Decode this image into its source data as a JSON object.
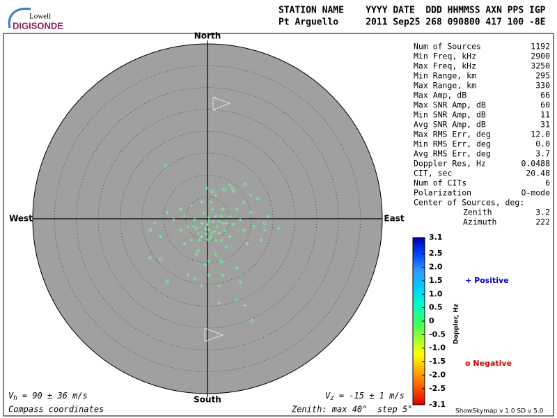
{
  "header": {
    "logo_top": "Lowell",
    "logo_bottom": "DIGISONDE",
    "line1": "STATION NAME    YYYY DATE  DDD HHMMSS AXN PPS IGP",
    "line2": "Pt Arguello     2011 Sep25 268 090800 417 100 -8E"
  },
  "stats": [
    {
      "label": "Num of Sources",
      "value": "1192"
    },
    {
      "label": "Min Freq, kHz",
      "value": "2900"
    },
    {
      "label": "Max Freq, kHz",
      "value": "3250"
    },
    {
      "label": "Min Range, km",
      "value": "295"
    },
    {
      "label": "Max Range, km",
      "value": "330"
    },
    {
      "label": "Max Amp, dB",
      "value": "66"
    },
    {
      "label": "Max SNR Amp, dB",
      "value": "60"
    },
    {
      "label": "Min SNR Amp, dB",
      "value": "11"
    },
    {
      "label": "Avg SNR Amp, dB",
      "value": "31"
    },
    {
      "label": "Max RMS Err, deg",
      "value": "12.0"
    },
    {
      "label": "Min RMS Err, deg",
      "value": "0.0"
    },
    {
      "label": "Avg RMS Err, deg",
      "value": "3.7"
    },
    {
      "label": "Doppler Res, Hz",
      "value": "0.0488"
    },
    {
      "label": "CIT, sec",
      "value": "20.48"
    },
    {
      "label": "Num of CITs",
      "value": "6"
    },
    {
      "label": "Polarization",
      "value": "O-mode"
    }
  ],
  "center": {
    "title": "Center of Sources, deg:",
    "rows": [
      {
        "label": "Zenith",
        "value": "3.2"
      },
      {
        "label": "Azimuth",
        "value": "222"
      }
    ]
  },
  "footer": {
    "vh": {
      "symbol": "V",
      "sub": "h",
      "text": " = 90 ± 36 m/s"
    },
    "vz": {
      "symbol": "V",
      "sub": "z",
      "text": " = -15 ± 1 m/s"
    },
    "coords": "Compass coordinates",
    "zenith": "Zenith: max 40°  step 5°",
    "version": "ShowSkymap v 1.0  SD v 5.0"
  },
  "chart_data": {
    "type": "polar-scatter",
    "directions": {
      "north": "North",
      "south": "South",
      "west": "West",
      "east": "East"
    },
    "rlim": [
      0,
      40
    ],
    "rticks": [
      5,
      10,
      15,
      20,
      25,
      30,
      35,
      40
    ],
    "background": "#a0a0a0",
    "point_color": "#66ff99",
    "series": [
      {
        "name": "Positive",
        "symbol": "+",
        "color": "#0000cc",
        "x": [
          -0.2,
          0.8,
          1.1,
          1.9,
          -1.3,
          0.3,
          2.7,
          3.5,
          -2.9,
          -4.5,
          6.7,
          8.3,
          9.9,
          11.5,
          8.3,
          10.7,
          13.1,
          16.3,
          -7.7,
          -6.1,
          -3.7,
          -2.1,
          -0.5,
          0.3,
          2.7,
          3.5,
          6.7,
          7.5,
          2.7,
          6.7,
          8.6,
          -5.3,
          -13.2,
          -12.1,
          -9.2,
          -6.1,
          -3.7,
          1.9,
          5.1,
          5.9,
          -10.8,
          -4.5,
          -2.9,
          -1.3,
          0.3,
          1.9,
          4.3,
          9.1,
          12.3,
          13.9,
          -1.3,
          1.3,
          2.2,
          0.0,
          0.8,
          3.2,
          -2.1,
          5.1,
          7.5,
          9.9,
          3.5,
          5.1,
          -0.8,
          1.6,
          0.3,
          -1.8,
          4.0,
          5.9,
          -3.2,
          -5.3,
          -0.5,
          1.1,
          2.7,
          -1.3,
          1.9,
          4.3,
          0.3,
          -2.5,
          3.2,
          -0.3
        ],
        "y": [
          7.0,
          3.8,
          2.2,
          0.6,
          -1.0,
          -2.5,
          -3.3,
          -1.0,
          -0.2,
          -1.8,
          2.2,
          3.8,
          5.4,
          4.6,
          -2.6,
          -1.8,
          -2.6,
          -2.2,
          -0.2,
          -2.6,
          -4.9,
          -7.3,
          -10.5,
          -12.9,
          -15.3,
          -12.9,
          -11.3,
          -14.5,
          -19.3,
          -18.5,
          -19.8,
          -5.7,
          -8.9,
          -1.0,
          1.4,
          2.2,
          3.0,
          5.4,
          7.8,
          6.2,
          -4.1,
          -12.9,
          -13.7,
          -15.3,
          -9.7,
          -8.1,
          -6.5,
          -5.7,
          -4.9,
          0.6,
          3.8,
          -0.6,
          -1.8,
          -1.3,
          -4.1,
          -4.9,
          -3.3,
          -4.1,
          -0.2,
          1.4,
          2.2,
          0.6,
          1.4,
          -2.9,
          0.3,
          -4.9,
          -2.6,
          -1.3,
          -1.8,
          0.6,
          -2.2,
          -3.3,
          -0.6,
          -4.1,
          -4.9,
          -1.0,
          -0.6,
          -2.2,
          0.6,
          -3.5
        ]
      },
      {
        "name": "Negative",
        "symbol": "o",
        "color": "#cc0000",
        "x": [
          -9.6,
          -9.2,
          10.2,
          5.7,
          1.1,
          -13.1,
          -10.8,
          3.8,
          8.6,
          -2.5,
          3.2,
          13.1,
          0.3
        ],
        "y": [
          12.1,
          -14.3,
          -23.3,
          7.0,
          6.2,
          -2.6,
          -9.2,
          6.7,
          7.8,
          -8.1,
          -9.7,
          -1.0,
          -4.8
        ]
      }
    ],
    "colorbar": {
      "label": "Doppler, Hz",
      "lim": [
        -3.1,
        3.1
      ],
      "ticks": [
        3.1,
        2.5,
        {
          "value": 2,
          "label": "2.0"
        },
        1.5,
        {
          "value": 1,
          "label": "1.0"
        },
        0.5,
        0,
        -0.5,
        {
          "value": -1,
          "label": "-1.0"
        },
        -1.5,
        {
          "value": -2,
          "label": "-2.0"
        },
        -2.5,
        -3.1
      ],
      "colors": [
        "#dd0000",
        "#ff5500",
        "#ffaa00",
        "#ffff00",
        "#99ff33",
        "#33ff66",
        "#00ffcc",
        "#00ccff",
        "#3399ff",
        "#0044ff",
        "#0000aa"
      ]
    }
  }
}
